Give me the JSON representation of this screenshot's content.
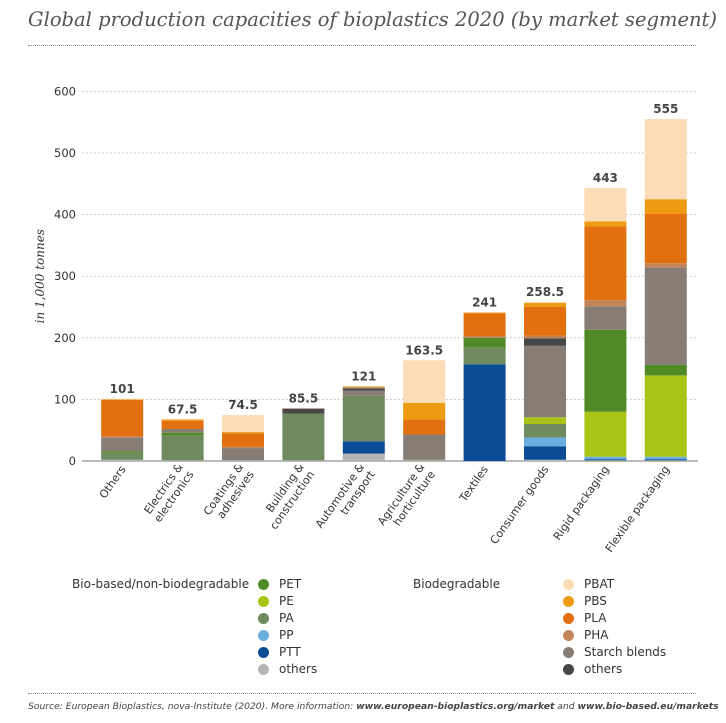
{
  "title": "Global production capacities of bioplastics 2020 (by market segment)",
  "colors": {
    "PET": "#4f8a26",
    "PE": "#a9c414",
    "PA": "#6e8a5e",
    "PP": "#6aaee0",
    "PTT": "#0b4c97",
    "bio_others": "#b5b5b5",
    "PBAT": "#fcdcb6",
    "PBS": "#ee9b12",
    "PLA": "#e2700f",
    "PHA": "#c4845a",
    "Starch blends": "#877d74",
    "bd_others": "#474747",
    "grid": "#b8b8b8",
    "axis": "#777777"
  },
  "legend": {
    "group1_title": "Bio-based/non-biodegradable",
    "group1": [
      {
        "label": "PET",
        "color": "#4f8a26"
      },
      {
        "label": "PE",
        "color": "#a9c414"
      },
      {
        "label": "PA",
        "color": "#6e8a5e"
      },
      {
        "label": "PP",
        "color": "#6aaee0"
      },
      {
        "label": "PTT",
        "color": "#0b4c97"
      },
      {
        "label": "others",
        "color": "#b5b5b5"
      }
    ],
    "group2_title": "Biodegradable",
    "group2": [
      {
        "label": "PBAT",
        "color": "#fcdcb6"
      },
      {
        "label": "PBS",
        "color": "#ee9b12"
      },
      {
        "label": "PLA",
        "color": "#e2700f"
      },
      {
        "label": "PHA",
        "color": "#c4845a"
      },
      {
        "label": "Starch blends",
        "color": "#877d74"
      },
      {
        "label": "others",
        "color": "#474747"
      }
    ]
  },
  "source": {
    "prefix": "Source: European Bioplastics, nova-Institute (2020). More information: ",
    "link1": "www.european-bioplastics.org/market",
    "middle": " and ",
    "link2": "www.bio-based.eu/markets"
  },
  "chart_data": {
    "type": "bar",
    "stacked": true,
    "ylabel": "in 1,000 tonnes",
    "ylim": [
      0,
      600
    ],
    "yticks": [
      0,
      100,
      200,
      300,
      400,
      500,
      600
    ],
    "grid": "horizontal dotted",
    "categories": [
      "Others",
      "Electrics & electronics",
      "Coatings & adhesives",
      "Building & construction",
      "Automotive & transport",
      "Agriculture & horticulture",
      "Textiles",
      "Consumer goods",
      "Rigid packaging",
      "Flexible packaging"
    ],
    "category_labels": [
      [
        "Others"
      ],
      [
        "Electrics &",
        "electronics"
      ],
      [
        "Coatings &",
        "adhesives"
      ],
      [
        "Building &",
        "construction"
      ],
      [
        "Automotive &",
        "transport"
      ],
      [
        "Agriculture &",
        "horticulture"
      ],
      [
        "Textiles"
      ],
      [
        "Consumer goods"
      ],
      [
        "Rigid packaging"
      ],
      [
        "Flexible packaging"
      ]
    ],
    "totals": [
      "101",
      "67.5",
      "74.5",
      "85.5",
      "121",
      "163.5",
      "241",
      "258.5",
      "443",
      "555"
    ],
    "series_order": [
      "others (bio-based)",
      "PTT",
      "PP",
      "PA",
      "PE",
      "PET",
      "Starch blends",
      "others (biodegradable)",
      "PHA",
      "PLA",
      "PBS",
      "PBAT"
    ],
    "series": [
      {
        "key": "bio_others",
        "values": [
          2,
          1,
          1,
          1,
          12,
          1,
          0,
          2,
          1,
          1
        ]
      },
      {
        "key": "PTT",
        "values": [
          0,
          0,
          0,
          0,
          20,
          0,
          157,
          22,
          2,
          2
        ]
      },
      {
        "key": "PP",
        "values": [
          0,
          0,
          0,
          0,
          0,
          0,
          0,
          14,
          4,
          4
        ]
      },
      {
        "key": "PA",
        "values": [
          12,
          40,
          0,
          76,
          74,
          1,
          27,
          22,
          0,
          0
        ]
      },
      {
        "key": "PE",
        "values": [
          0,
          0,
          0,
          0,
          0,
          0,
          0,
          11,
          73,
          132
        ]
      },
      {
        "key": "PET",
        "values": [
          2,
          5,
          0,
          0,
          0,
          0,
          16,
          0,
          133,
          17
        ]
      },
      {
        "key": "Starch blends",
        "values": [
          22,
          6,
          20,
          0,
          8,
          41,
          0,
          116,
          38,
          158
        ]
      },
      {
        "key": "bd_others",
        "values": [
          0,
          0,
          0,
          8,
          4,
          0,
          0,
          12,
          0,
          0
        ]
      },
      {
        "key": "PHA",
        "values": [
          2,
          0,
          2,
          0.5,
          2,
          0,
          3,
          4.5,
          10,
          7
        ]
      },
      {
        "key": "PLA",
        "values": [
          59,
          13.5,
          22,
          0,
          0,
          24.5,
          37,
          47,
          120,
          80
        ]
      },
      {
        "key": "PBS",
        "values": [
          1,
          2,
          2,
          0,
          1,
          27,
          1,
          6,
          8,
          24
        ]
      },
      {
        "key": "PBAT",
        "values": [
          1,
          0,
          27.5,
          0,
          0,
          69,
          0,
          2,
          54,
          130
        ]
      }
    ]
  }
}
